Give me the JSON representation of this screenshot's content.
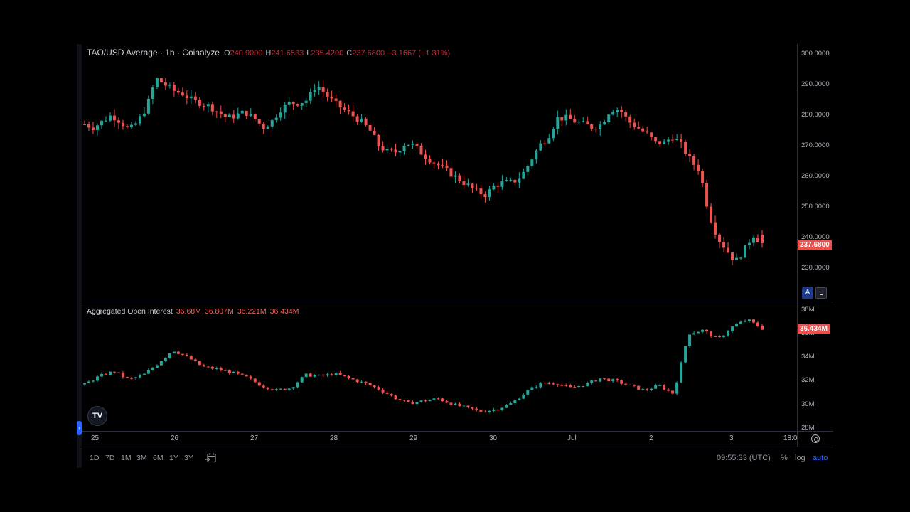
{
  "header": {
    "symbol_title": "TAO/USD Average · 1h · Coinalyze",
    "ohlc": {
      "open_label": "O",
      "open": "240.9000",
      "high_label": "H",
      "high": "241.6533",
      "low_label": "L",
      "low": "235.4200",
      "close_label": "C",
      "close": "237.6800",
      "change": "−3.1667 (−1.31%)"
    }
  },
  "price_pane": {
    "y_axis_labels": [
      "300.0000",
      "290.0000",
      "280.0000",
      "270.0000",
      "260.0000",
      "250.0000",
      "240.0000",
      "230.0000"
    ],
    "last_price_tag": "237.6800",
    "auto_button": "A",
    "log_button": "L"
  },
  "oi_pane": {
    "title": "Aggregated Open Interest",
    "values": [
      "36.68M",
      "36.807M",
      "36.221M",
      "36.434M"
    ],
    "y_axis_labels": [
      "38M",
      "36M",
      "34M",
      "32M",
      "30M",
      "28M"
    ],
    "last_value_tag": "36.434M"
  },
  "time_axis": {
    "labels": [
      "25",
      "26",
      "27",
      "28",
      "29",
      "30",
      "Jul",
      "2",
      "3",
      "18:0"
    ]
  },
  "bottom_toolbar": {
    "ranges": [
      "1D",
      "7D",
      "1M",
      "3M",
      "6M",
      "1Y",
      "3Y"
    ],
    "clock": "09:55:33 (UTC)",
    "percent": "%",
    "log": "log",
    "auto": "auto"
  },
  "logo_text": "TV",
  "colors": {
    "up": "#26a69a",
    "down": "#ef5350",
    "tag_red": "#e8514d",
    "auto_blue": "#2962ff",
    "background": "#000000",
    "grid_line": "#2a2e39"
  },
  "chart_data": [
    {
      "type": "candlestick",
      "title": "TAO/USD Average · 1h · Coinalyze",
      "ylim": [
        225,
        302
      ],
      "x_ticks": [
        "25",
        "26",
        "27",
        "28",
        "29",
        "30",
        "Jul",
        "2",
        "3",
        "18:0"
      ],
      "trend_points": [
        [
          0,
          277
        ],
        [
          1,
          276
        ],
        [
          2,
          278
        ],
        [
          3,
          280
        ],
        [
          4,
          278
        ],
        [
          5,
          275
        ],
        [
          6,
          278
        ],
        [
          7,
          283
        ],
        [
          8,
          292
        ],
        [
          9,
          290
        ],
        [
          10,
          288
        ],
        [
          11,
          287
        ],
        [
          12,
          285
        ],
        [
          13,
          284
        ],
        [
          14,
          283
        ],
        [
          15,
          281
        ],
        [
          16,
          279
        ],
        [
          17,
          280
        ],
        [
          18,
          281
        ],
        [
          19,
          279
        ],
        [
          20,
          276
        ],
        [
          21,
          278
        ],
        [
          22,
          282
        ],
        [
          23,
          284
        ],
        [
          24,
          284
        ],
        [
          25,
          285
        ],
        [
          26,
          290
        ],
        [
          27,
          287
        ],
        [
          28,
          284
        ],
        [
          29,
          282
        ],
        [
          30,
          280
        ],
        [
          31,
          278
        ],
        [
          32,
          275
        ],
        [
          33,
          270
        ],
        [
          34,
          268
        ],
        [
          35,
          268
        ],
        [
          36,
          271
        ],
        [
          37,
          270
        ],
        [
          38,
          267
        ],
        [
          39,
          265
        ],
        [
          40,
          263
        ],
        [
          41,
          261
        ],
        [
          42,
          259
        ],
        [
          43,
          257
        ],
        [
          44,
          255
        ],
        [
          45,
          254
        ],
        [
          46,
          257
        ],
        [
          47,
          258
        ],
        [
          48,
          258
        ],
        [
          49,
          260
        ],
        [
          50,
          265
        ],
        [
          51,
          270
        ],
        [
          52,
          273
        ],
        [
          53,
          279
        ],
        [
          54,
          279
        ],
        [
          55,
          278
        ],
        [
          56,
          277
        ],
        [
          57,
          276
        ],
        [
          58,
          277
        ],
        [
          59,
          282
        ],
        [
          60,
          282
        ],
        [
          61,
          278
        ],
        [
          62,
          276
        ],
        [
          63,
          274
        ],
        [
          64,
          271
        ],
        [
          65,
          271
        ],
        [
          66,
          273
        ],
        [
          67,
          270
        ],
        [
          68,
          265
        ],
        [
          69,
          262
        ],
        [
          70,
          248
        ],
        [
          71,
          240
        ],
        [
          72,
          236
        ],
        [
          73,
          232
        ],
        [
          74,
          236
        ],
        [
          75,
          241
        ],
        [
          76,
          238
        ]
      ],
      "last_close": 237.68
    },
    {
      "type": "candlestick",
      "title": "Aggregated Open Interest",
      "ylim": [
        27.8,
        38.2
      ],
      "series_values_shown": {
        "open": "36.68M",
        "high": "36.807M",
        "low": "36.221M",
        "close": "36.434M"
      },
      "trend_points": [
        [
          0,
          31.7
        ],
        [
          1,
          32.4
        ],
        [
          2,
          32.8
        ],
        [
          3,
          32.1
        ],
        [
          4,
          32.5
        ],
        [
          5,
          33.5
        ],
        [
          6,
          34.6
        ],
        [
          7,
          34.0
        ],
        [
          8,
          33.2
        ],
        [
          9,
          33.0
        ],
        [
          10,
          32.7
        ],
        [
          11,
          32.3
        ],
        [
          12,
          31.6
        ],
        [
          13,
          31.2
        ],
        [
          14,
          31.4
        ],
        [
          15,
          32.5
        ],
        [
          16,
          32.4
        ],
        [
          17,
          32.6
        ],
        [
          18,
          32.2
        ],
        [
          19,
          31.8
        ],
        [
          20,
          31.3
        ],
        [
          21,
          30.6
        ],
        [
          22,
          30.1
        ],
        [
          23,
          30.3
        ],
        [
          24,
          30.5
        ],
        [
          25,
          30.0
        ],
        [
          26,
          29.7
        ],
        [
          27,
          29.4
        ],
        [
          28,
          29.6
        ],
        [
          29,
          30.1
        ],
        [
          30,
          31.1
        ],
        [
          31,
          31.8
        ],
        [
          32,
          31.8
        ],
        [
          33,
          31.4
        ],
        [
          34,
          31.7
        ],
        [
          35,
          32.2
        ],
        [
          36,
          32.0
        ],
        [
          37,
          31.6
        ],
        [
          38,
          31.2
        ],
        [
          39,
          31.6
        ],
        [
          40,
          30.9
        ],
        [
          41,
          36.0
        ],
        [
          42,
          36.3
        ],
        [
          43,
          35.5
        ],
        [
          44,
          36.6
        ],
        [
          45,
          37.2
        ],
        [
          46,
          36.43
        ]
      ],
      "last_value": "36.434M"
    }
  ]
}
